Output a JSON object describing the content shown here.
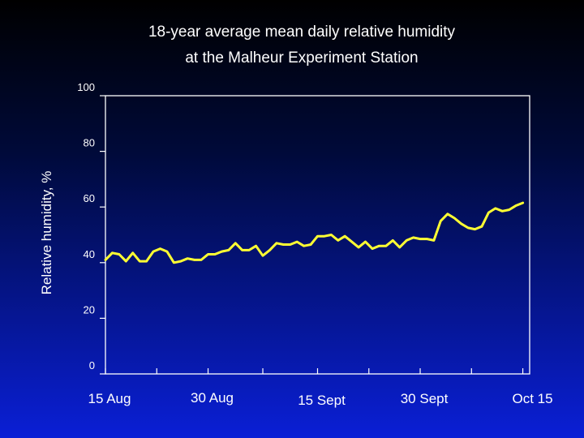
{
  "chart_data": {
    "type": "line",
    "title": "18-year average mean daily relative humidity",
    "subtitle": "at the Malheur Experiment Station",
    "xlabel": "",
    "ylabel": "Relative humidity, %",
    "ylim": [
      0,
      100
    ],
    "yticks": [
      0,
      20,
      40,
      60,
      80,
      100
    ],
    "xlim": [
      0,
      62
    ],
    "xtick_labels": [
      {
        "x": 0,
        "label": "15 Aug"
      },
      {
        "x": 15,
        "label": "30 Aug"
      },
      {
        "x": 31,
        "label": "15 Sept"
      },
      {
        "x": 46,
        "label": "30 Sept"
      },
      {
        "x": 61,
        "label": "Oct 15"
      }
    ],
    "xticks_minor": [
      0,
      7.5,
      15,
      23,
      31,
      38.5,
      46,
      53.5,
      61
    ],
    "grid": false,
    "line_color": "#ffff33",
    "series": [
      {
        "name": "Relative humidity",
        "x": [
          0,
          1,
          2,
          3,
          4,
          5,
          6,
          7,
          8,
          9,
          10,
          11,
          12,
          13,
          14,
          15,
          16,
          17,
          18,
          19,
          20,
          21,
          22,
          23,
          24,
          25,
          26,
          27,
          28,
          29,
          30,
          31,
          32,
          33,
          34,
          35,
          36,
          37,
          38,
          39,
          40,
          41,
          42,
          43,
          44,
          45,
          46,
          47,
          48,
          49,
          50,
          51,
          52,
          53,
          54,
          55,
          56,
          57,
          58,
          59,
          60,
          61
        ],
        "values": [
          41,
          43.5,
          43,
          40.5,
          43.5,
          40.5,
          40.5,
          44,
          45,
          44,
          40,
          40.5,
          41.5,
          41,
          41,
          43,
          43,
          44,
          44.5,
          47,
          44.5,
          44.5,
          46,
          42.5,
          44.5,
          47,
          46.5,
          46.5,
          47.5,
          46,
          46.5,
          49.5,
          49.5,
          50,
          48,
          49.5,
          47.5,
          45.5,
          47.5,
          45,
          46,
          46,
          48,
          45.5,
          48,
          49,
          48.5,
          48.5,
          48,
          55,
          57.5,
          56,
          54,
          52.5,
          52,
          53,
          58,
          59.5,
          58.5,
          59,
          60.5,
          61.5
        ]
      }
    ]
  }
}
